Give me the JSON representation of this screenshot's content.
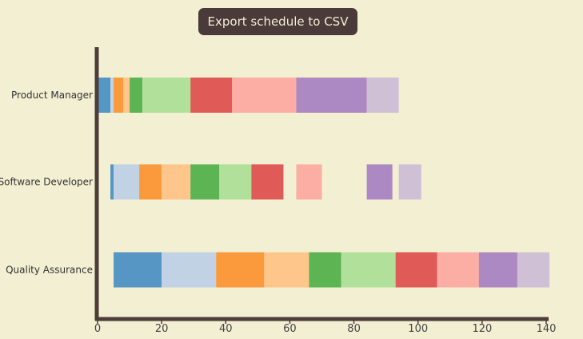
{
  "toolbar": {
    "export_label": "Export schedule to CSV"
  },
  "chart_data": {
    "type": "bar",
    "orientation": "horizontal-stacked-gantt",
    "title": "",
    "xlabel": "",
    "ylabel": "",
    "xlim": [
      0,
      140
    ],
    "x_ticks": [
      0,
      20,
      40,
      60,
      80,
      100,
      120,
      140
    ],
    "grid": false,
    "categories": [
      "Product Manager",
      "Software Developer",
      "Quality Assurance"
    ],
    "palette": [
      "#5596c4",
      "#c0d2e4",
      "#fb9a3d",
      "#fec68a",
      "#5cb552",
      "#b0e09a",
      "#e05a57",
      "#fdaea4",
      "#ad89c4",
      "#cfc0d6"
    ],
    "tasks": [
      [
        {
          "start": 0,
          "end": 4,
          "color": 0
        },
        {
          "start": 4,
          "end": 5,
          "color": 1
        },
        {
          "start": 5,
          "end": 8,
          "color": 2
        },
        {
          "start": 8,
          "end": 10,
          "color": 3
        },
        {
          "start": 10,
          "end": 14,
          "color": 4
        },
        {
          "start": 14,
          "end": 29,
          "color": 5
        },
        {
          "start": 29,
          "end": 42,
          "color": 6
        },
        {
          "start": 42,
          "end": 62,
          "color": 7
        },
        {
          "start": 62,
          "end": 84,
          "color": 8
        },
        {
          "start": 84,
          "end": 94,
          "color": 9
        }
      ],
      [
        {
          "start": 4,
          "end": 5,
          "color": 0
        },
        {
          "start": 5,
          "end": 13,
          "color": 1
        },
        {
          "start": 13,
          "end": 20,
          "color": 2
        },
        {
          "start": 20,
          "end": 29,
          "color": 3
        },
        {
          "start": 29,
          "end": 38,
          "color": 4
        },
        {
          "start": 38,
          "end": 48,
          "color": 5
        },
        {
          "start": 48,
          "end": 58,
          "color": 6
        },
        {
          "start": 62,
          "end": 70,
          "color": 7
        },
        {
          "start": 84,
          "end": 92,
          "color": 8
        },
        {
          "start": 94,
          "end": 101,
          "color": 9
        }
      ],
      [
        {
          "start": 5,
          "end": 20,
          "color": 0
        },
        {
          "start": 20,
          "end": 37,
          "color": 1
        },
        {
          "start": 37,
          "end": 52,
          "color": 2
        },
        {
          "start": 52,
          "end": 66,
          "color": 3
        },
        {
          "start": 66,
          "end": 76,
          "color": 4
        },
        {
          "start": 76,
          "end": 93,
          "color": 5
        },
        {
          "start": 93,
          "end": 106,
          "color": 6
        },
        {
          "start": 106,
          "end": 119,
          "color": 7
        },
        {
          "start": 119,
          "end": 131,
          "color": 8
        },
        {
          "start": 131,
          "end": 141,
          "color": 9
        }
      ]
    ],
    "axis_color": "#4d3d3a"
  }
}
